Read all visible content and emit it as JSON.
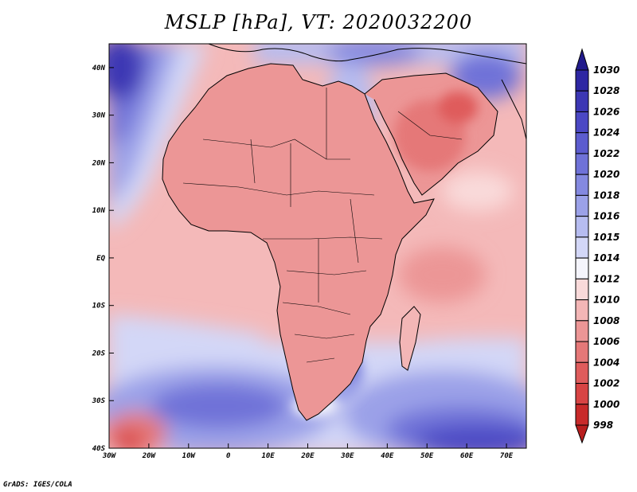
{
  "title": "MSLP [hPa], VT: 2020032200",
  "credit": "GrADS: IGES/COLA",
  "map": {
    "lon_range": [
      -30,
      75
    ],
    "lat_range": [
      -40,
      45
    ],
    "lat_ticks": [
      {
        "value": 40,
        "label": "40N"
      },
      {
        "value": 30,
        "label": "30N"
      },
      {
        "value": 20,
        "label": "20N"
      },
      {
        "value": 10,
        "label": "10N"
      },
      {
        "value": 0,
        "label": "EQ"
      },
      {
        "value": -10,
        "label": "10S"
      },
      {
        "value": -20,
        "label": "20S"
      },
      {
        "value": -30,
        "label": "30S"
      },
      {
        "value": -40,
        "label": "40S"
      }
    ],
    "lon_ticks": [
      {
        "value": -30,
        "label": "30W"
      },
      {
        "value": -20,
        "label": "20W"
      },
      {
        "value": -10,
        "label": "10W"
      },
      {
        "value": 0,
        "label": "0"
      },
      {
        "value": 10,
        "label": "10E"
      },
      {
        "value": 20,
        "label": "20E"
      },
      {
        "value": 30,
        "label": "30E"
      },
      {
        "value": 40,
        "label": "40E"
      },
      {
        "value": 50,
        "label": "50E"
      },
      {
        "value": 60,
        "label": "60E"
      },
      {
        "value": 70,
        "label": "70E"
      }
    ]
  },
  "colorbar": {
    "levels": [
      "1030",
      "1028",
      "1026",
      "1024",
      "1022",
      "1020",
      "1018",
      "1016",
      "1015",
      "1014",
      "1012",
      "1010",
      "1008",
      "1006",
      "1004",
      "1002",
      "1000",
      "998"
    ],
    "top_color": "#221b8c",
    "bottom_color": "#b81e1e",
    "colors": [
      "#2e27a3",
      "#3c37b4",
      "#4b48c4",
      "#5c5ccf",
      "#6f72d8",
      "#8489e0",
      "#9ba1e8",
      "#b6bcf0",
      "#d3d7f7",
      "#f4f4fb",
      "#f9dada",
      "#f3b6b6",
      "#ec9696",
      "#e57878",
      "#df5c5c",
      "#d84444",
      "#c82a2a"
    ]
  },
  "field": {
    "zones": [
      {
        "name": "land",
        "value": 1009.5
      },
      {
        "name": "gulf-of-guinea",
        "value": 1011
      },
      {
        "name": "south-indian-ocean",
        "value": 1020
      },
      {
        "name": "south-atlantic-high",
        "value": 1022
      },
      {
        "name": "azores-high",
        "value": 1027
      },
      {
        "name": "arabian-low",
        "value": 1007
      }
    ]
  }
}
